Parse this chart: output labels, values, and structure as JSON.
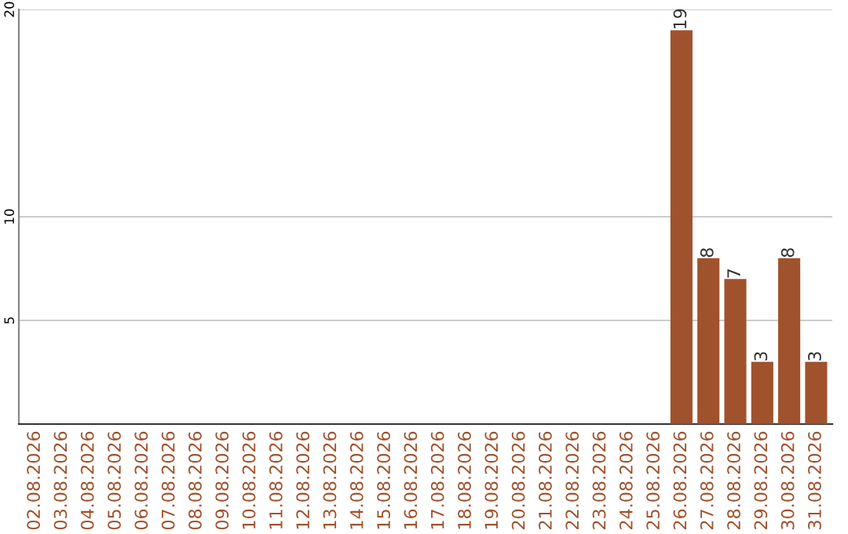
{
  "chart_data": {
    "type": "bar",
    "categories": [
      "02.08.2026",
      "03.08.2026",
      "04.08.2026",
      "05.08.2026",
      "06.08.2026",
      "07.08.2026",
      "08.08.2026",
      "09.08.2026",
      "10.08.2026",
      "11.08.2026",
      "12.08.2026",
      "13.08.2026",
      "14.08.2026",
      "15.08.2026",
      "16.08.2026",
      "17.08.2026",
      "18.08.2026",
      "19.08.2026",
      "20.08.2026",
      "21.08.2026",
      "22.08.2026",
      "23.08.2026",
      "24.08.2026",
      "25.08.2026",
      "26.08.2026",
      "27.08.2026",
      "28.08.2026",
      "29.08.2026",
      "30.08.2026",
      "31.08.2026"
    ],
    "values": [
      0,
      0,
      0,
      0,
      0,
      0,
      0,
      0,
      0,
      0,
      0,
      0,
      0,
      0,
      0,
      0,
      0,
      0,
      0,
      0,
      0,
      0,
      0,
      0,
      19,
      8,
      7,
      3,
      8,
      3
    ],
    "value_labels": [
      null,
      null,
      null,
      null,
      null,
      null,
      null,
      null,
      null,
      null,
      null,
      null,
      null,
      null,
      null,
      null,
      null,
      null,
      null,
      null,
      null,
      null,
      null,
      null,
      "19",
      "8",
      "7",
      "3",
      "8",
      "3"
    ],
    "color": "#a0522d",
    "ylim": [
      0,
      20
    ],
    "yticks": [
      5,
      10,
      20
    ],
    "grid": "y"
  }
}
